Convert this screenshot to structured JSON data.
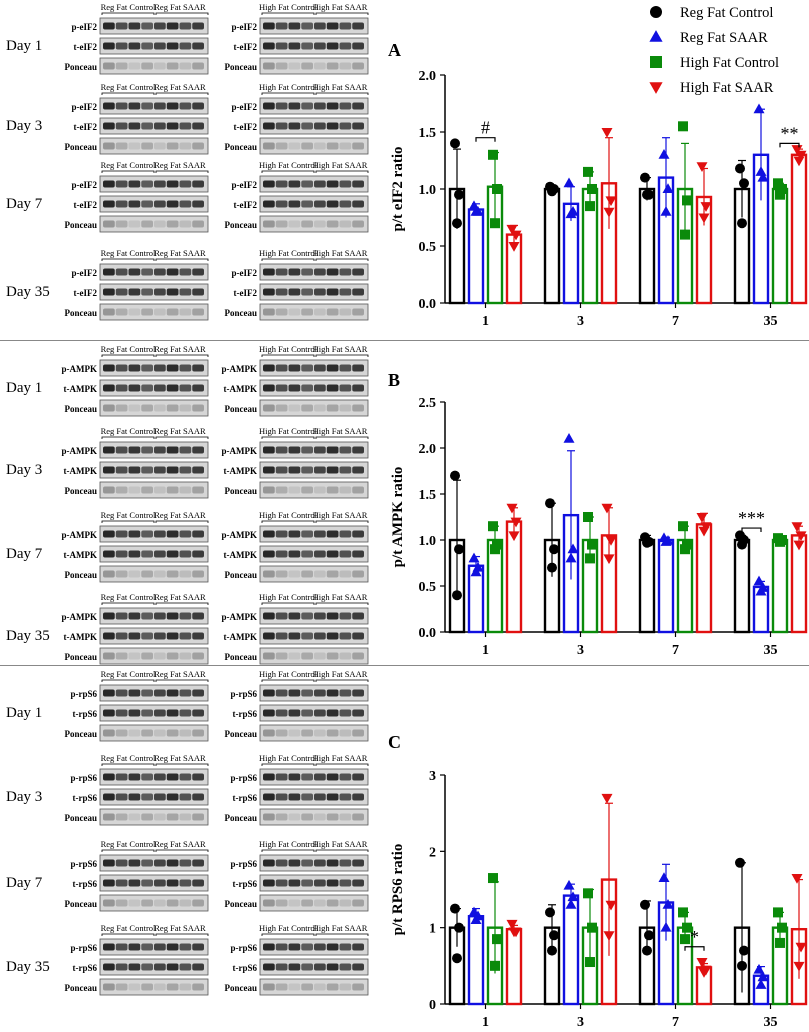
{
  "legend": [
    {
      "name": "Reg Fat Control",
      "color": "#000000",
      "marker": "circle"
    },
    {
      "name": "Reg Fat SAAR",
      "color": "#1010e0",
      "marker": "triangle-up"
    },
    {
      "name": "High Fat Control",
      "color": "#0a8a0a",
      "marker": "square"
    },
    {
      "name": "High Fat SAAR",
      "color": "#e01010",
      "marker": "triangle-down"
    }
  ],
  "blot_groups": [
    {
      "label_reg": [
        "Reg Fat Control",
        "Reg Fat SAAR"
      ],
      "label_high": [
        "High Fat Control",
        "High Fat SAAR"
      ],
      "days": [
        {
          "day": "Day 1",
          "rows": [
            "p-eIF2",
            "t-eIF2",
            "Ponceau"
          ]
        },
        {
          "day": "Day 3",
          "rows": [
            "p-eIF2",
            "t-eIF2",
            "Ponceau"
          ]
        },
        {
          "day": "Day 7",
          "rows": [
            "p-eIF2",
            "t-eIF2",
            "Ponceau"
          ]
        },
        {
          "day": "Day 35",
          "rows": [
            "p-eIF2",
            "t-eIF2",
            "Ponceau"
          ]
        }
      ]
    },
    {
      "label_reg": [
        "Reg Fat Control",
        "Reg Fat SAAR"
      ],
      "label_high": [
        "High Fat Control",
        "High Fat SAAR"
      ],
      "days": [
        {
          "day": "Day 1",
          "rows": [
            "p-AMPK",
            "t-AMPK",
            "Ponceau"
          ]
        },
        {
          "day": "Day 3",
          "rows": [
            "p-AMPK",
            "t-AMPK",
            "Ponceau"
          ]
        },
        {
          "day": "Day 7",
          "rows": [
            "p-AMPK",
            "t-AMPK",
            "Ponceau"
          ]
        },
        {
          "day": "Day 35",
          "rows": [
            "p-AMPK",
            "t-AMPK",
            "Ponceau"
          ]
        }
      ]
    },
    {
      "label_reg": [
        "Reg Fat Control",
        "Reg Fat SAAR"
      ],
      "label_high": [
        "High Fat Control",
        "High Fat SAAR"
      ],
      "days": [
        {
          "day": "Day 1",
          "rows": [
            "p-rpS6",
            "t-rpS6",
            "Ponceau"
          ]
        },
        {
          "day": "Day 3",
          "rows": [
            "p-rpS6",
            "t-rpS6",
            "Ponceau"
          ]
        },
        {
          "day": "Day 7",
          "rows": [
            "p-rpS6",
            "t-rpS6",
            "Ponceau"
          ]
        },
        {
          "day": "Day 35",
          "rows": [
            "p-rpS6",
            "t-rpS6",
            "Ponceau"
          ]
        }
      ]
    }
  ],
  "chart_data": [
    {
      "panel": "A",
      "type": "bar",
      "ylabel": "p/t eIF2 ratio",
      "categories": [
        "1",
        "3",
        "7",
        "35"
      ],
      "ylim": [
        0,
        2.0
      ],
      "yticks": [
        "0.0",
        "0.5",
        "1.0",
        "1.5",
        "2.0"
      ],
      "series": [
        {
          "name": "Reg Fat Control",
          "values": [
            1.0,
            1.0,
            1.0,
            1.0
          ],
          "err": [
            0.35,
            0.02,
            0.1,
            0.25
          ],
          "points": [
            [
              1.4,
              0.95,
              0.7
            ],
            [
              1.02,
              1.0,
              0.98
            ],
            [
              1.1,
              0.95,
              0.95
            ],
            [
              1.18,
              1.05,
              0.7
            ]
          ]
        },
        {
          "name": "Reg Fat SAAR",
          "values": [
            0.82,
            0.87,
            1.1,
            1.3
          ],
          "err": [
            0.05,
            0.15,
            0.35,
            0.4
          ],
          "points": [
            [
              0.85,
              0.8,
              0.8
            ],
            [
              1.05,
              0.8,
              0.78
            ],
            [
              1.3,
              1.0,
              0.8
            ],
            [
              1.7,
              1.1,
              1.15
            ]
          ]
        },
        {
          "name": "High Fat Control",
          "values": [
            1.02,
            1.0,
            1.0,
            1.0
          ],
          "err": [
            0.3,
            0.15,
            0.4,
            0.05
          ],
          "points": [
            [
              1.3,
              1.0,
              0.7
            ],
            [
              1.15,
              1.0,
              0.85
            ],
            [
              1.55,
              0.9,
              0.6
            ],
            [
              1.05,
              1.0,
              0.95
            ]
          ]
        },
        {
          "name": "High Fat SAAR",
          "values": [
            0.6,
            1.05,
            0.93,
            1.3
          ],
          "err": [
            0.08,
            0.4,
            0.25,
            0.05
          ],
          "points": [
            [
              0.65,
              0.6,
              0.5
            ],
            [
              1.5,
              0.9,
              0.8
            ],
            [
              1.2,
              0.85,
              0.75
            ],
            [
              1.35,
              1.3,
              1.25
            ]
          ]
        }
      ],
      "annotations": [
        {
          "text": "#",
          "cat": 0,
          "from": 1,
          "to": 2,
          "y": 1.45
        },
        {
          "text": "**",
          "cat": 3,
          "from": 2,
          "to": 3,
          "y": 1.4
        }
      ]
    },
    {
      "panel": "B",
      "type": "bar",
      "ylabel": "p/t AMPK ratio",
      "categories": [
        "1",
        "3",
        "7",
        "35"
      ],
      "ylim": [
        0,
        2.5
      ],
      "yticks": [
        "0.0",
        "0.5",
        "1.0",
        "1.5",
        "2.0",
        "2.5"
      ],
      "series": [
        {
          "name": "Reg Fat Control",
          "values": [
            1.0,
            1.0,
            1.0,
            1.0
          ],
          "err": [
            0.65,
            0.4,
            0.05,
            0.05
          ],
          "points": [
            [
              1.7,
              0.9,
              0.4
            ],
            [
              1.4,
              0.9,
              0.7
            ],
            [
              1.03,
              0.98,
              0.97
            ],
            [
              1.05,
              1.0,
              0.95
            ]
          ]
        },
        {
          "name": "Reg Fat SAAR",
          "values": [
            0.72,
            1.27,
            1.0,
            0.49
          ],
          "err": [
            0.1,
            0.7,
            0.03,
            0.06
          ],
          "points": [
            [
              0.8,
              0.7,
              0.65
            ],
            [
              2.1,
              0.9,
              0.8
            ],
            [
              1.02,
              0.99,
              0.98
            ],
            [
              0.55,
              0.48,
              0.44
            ]
          ]
        },
        {
          "name": "High Fat Control",
          "values": [
            1.0,
            1.0,
            1.0,
            1.0
          ],
          "err": [
            0.15,
            0.25,
            0.15,
            0.04
          ],
          "points": [
            [
              1.15,
              0.95,
              0.9
            ],
            [
              1.25,
              0.95,
              0.8
            ],
            [
              1.15,
              0.95,
              0.9
            ],
            [
              1.02,
              1.0,
              0.98
            ]
          ]
        },
        {
          "name": "High Fat SAAR",
          "values": [
            1.2,
            1.05,
            1.17,
            1.05
          ],
          "err": [
            0.15,
            0.3,
            0.12,
            0.1
          ],
          "points": [
            [
              1.35,
              1.2,
              1.05
            ],
            [
              1.35,
              1.0,
              0.8
            ],
            [
              1.25,
              1.15,
              1.1
            ],
            [
              1.15,
              1.05,
              0.95
            ]
          ]
        }
      ],
      "annotations": [
        {
          "text": "***",
          "cat": 3,
          "from": 0,
          "to": 1,
          "y": 1.13
        }
      ]
    },
    {
      "panel": "C",
      "type": "bar",
      "ylabel": "p/t RPS6 ratio",
      "categories": [
        "1",
        "3",
        "7",
        "35"
      ],
      "ylim": [
        0,
        3
      ],
      "yticks": [
        "0",
        "1",
        "2",
        "3"
      ],
      "series": [
        {
          "name": "Reg Fat Control",
          "values": [
            1.0,
            1.0,
            1.0,
            1.0
          ],
          "err": [
            0.25,
            0.3,
            0.35,
            0.85
          ],
          "points": [
            [
              1.25,
              1.0,
              0.6
            ],
            [
              1.2,
              0.9,
              0.7
            ],
            [
              1.3,
              0.9,
              0.7
            ],
            [
              1.85,
              0.7,
              0.5
            ]
          ]
        },
        {
          "name": "Reg Fat SAAR",
          "values": [
            1.15,
            1.42,
            1.33,
            0.37
          ],
          "err": [
            0.1,
            0.15,
            0.5,
            0.12
          ],
          "points": [
            [
              1.2,
              1.15,
              1.1
            ],
            [
              1.55,
              1.4,
              1.3
            ],
            [
              1.65,
              1.3,
              1.0
            ],
            [
              0.45,
              0.35,
              0.25
            ]
          ]
        },
        {
          "name": "High Fat Control",
          "values": [
            1.0,
            1.0,
            1.0,
            1.0
          ],
          "err": [
            0.6,
            0.5,
            0.2,
            0.2
          ],
          "points": [
            [
              1.65,
              0.85,
              0.5
            ],
            [
              1.45,
              1.0,
              0.55
            ],
            [
              1.2,
              1.0,
              0.85
            ],
            [
              1.2,
              1.0,
              0.8
            ]
          ]
        },
        {
          "name": "High Fat SAAR",
          "values": [
            0.98,
            1.63,
            0.48,
            0.98
          ],
          "err": [
            0.05,
            1.0,
            0.05,
            0.65
          ],
          "points": [
            [
              1.05,
              0.95,
              0.95
            ],
            [
              2.7,
              1.3,
              0.9
            ],
            [
              0.55,
              0.45,
              0.42
            ],
            [
              1.65,
              0.75,
              0.5
            ]
          ]
        }
      ],
      "annotations": [
        {
          "text": "*",
          "cat": 2,
          "from": 2,
          "to": 3,
          "y": 0.75
        }
      ]
    }
  ]
}
